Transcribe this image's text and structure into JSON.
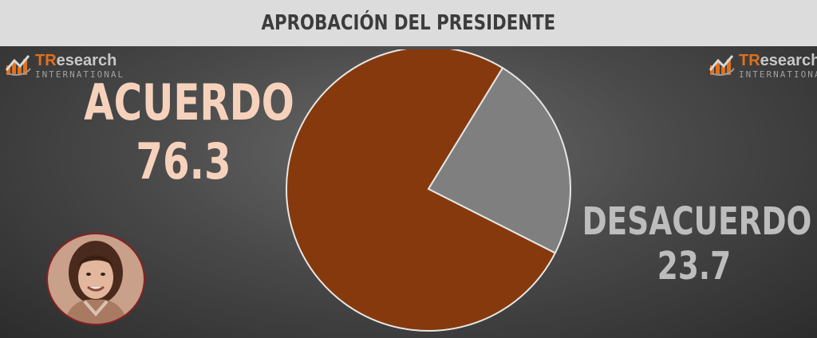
{
  "header": {
    "title": "APROBACIÓN DEL PRESIDENTE"
  },
  "logo": {
    "brand_tr": "TR",
    "brand_rest": "esearch",
    "sub": "INTERNATIONAL"
  },
  "colors": {
    "agree": "#85390c",
    "disagree": "#7f7f7f",
    "agree_text": "#f6d2bd",
    "disagree_text": "#bdbdbd"
  },
  "chart_data": {
    "type": "pie",
    "title": "APROBACIÓN DEL PRESIDENTE",
    "slices": [
      {
        "label": "ACUERDO",
        "value": 76.3,
        "display": "76.3",
        "color": "#85390c"
      },
      {
        "label": "DESACUERDO",
        "value": 23.7,
        "display": "23.7",
        "color": "#7f7f7f"
      }
    ]
  }
}
